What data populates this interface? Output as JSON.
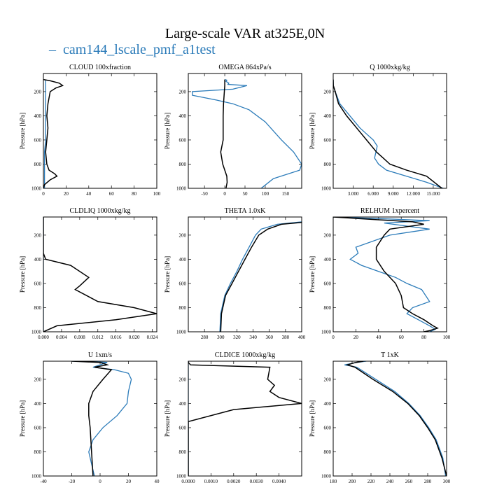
{
  "figure": {
    "title": "Large-scale VAR at325E,0N",
    "legend": {
      "marker": "–",
      "label": "cam144_lscale_pmf_a1test",
      "color": "#2b7bb9"
    },
    "colors": {
      "blue": "#2b7bb9",
      "black": "#000000"
    },
    "ylabel": "Pressure [hPa]"
  },
  "chart_data": [
    {
      "type": "line",
      "title": "CLOUD 100xfraction",
      "xlim": [
        0,
        100
      ],
      "ylim": [
        1000,
        50
      ],
      "xticks": [
        "0",
        "20",
        "40",
        "60",
        "80",
        "100"
      ],
      "xtick_values": [
        0,
        20,
        40,
        60,
        80,
        100
      ],
      "yticks": [
        "200",
        "400",
        "600",
        "800",
        "1000"
      ],
      "ytick_values": [
        200,
        400,
        600,
        800,
        1000
      ],
      "series": [
        {
          "name": "cam144_lscale_pmf_a1test",
          "color": "#2b7bb9",
          "x": [
            2,
            2,
            2,
            2,
            2,
            2,
            1,
            1,
            1,
            1,
            1,
            1
          ],
          "p": [
            100,
            200,
            300,
            400,
            500,
            600,
            700,
            800,
            850,
            900,
            950,
            1000
          ]
        },
        {
          "name": "black",
          "color": "#000000",
          "x": [
            0,
            6,
            14,
            17,
            11,
            6,
            4,
            3,
            4,
            3,
            2,
            3,
            5,
            10,
            12,
            6,
            1,
            0
          ],
          "p": [
            100,
            110,
            130,
            150,
            170,
            200,
            300,
            400,
            500,
            600,
            700,
            800,
            850,
            880,
            900,
            930,
            970,
            1000
          ]
        }
      ]
    },
    {
      "type": "line",
      "title": "OMEGA 864xPa/s",
      "xlim": [
        -90,
        190
      ],
      "ylim": [
        1000,
        50
      ],
      "xticks": [
        "-50",
        "0",
        "50",
        "100",
        "150"
      ],
      "xtick_values": [
        -50,
        0,
        50,
        100,
        150
      ],
      "yticks": [
        "200",
        "400",
        "600",
        "800",
        "1000"
      ],
      "ytick_values": [
        200,
        400,
        600,
        800,
        1000
      ],
      "series": [
        {
          "name": "cam144_lscale_pmf_a1test",
          "color": "#2b7bb9",
          "x": [
            0,
            5,
            3,
            10,
            8,
            55,
            20,
            -80,
            -80,
            -20,
            20,
            60,
            100,
            140,
            170,
            190,
            185,
            120,
            90
          ],
          "p": [
            100,
            105,
            115,
            130,
            140,
            150,
            180,
            200,
            230,
            270,
            300,
            350,
            450,
            600,
            700,
            800,
            850,
            920,
            1000
          ]
        },
        {
          "name": "black",
          "color": "#000000",
          "x": [
            0,
            0,
            -1,
            -3,
            -4,
            -4,
            -4,
            -10,
            -5,
            5,
            6,
            3
          ],
          "p": [
            100,
            150,
            200,
            300,
            400,
            500,
            600,
            700,
            800,
            900,
            950,
            1000
          ]
        }
      ]
    },
    {
      "type": "line",
      "title": "Q 1000xkg/kg",
      "xlim": [
        0,
        17000
      ],
      "ylim": [
        1000,
        50
      ],
      "xticks": [
        "3.000",
        "6.000",
        "9.000",
        "12.000",
        "15.000"
      ],
      "xtick_values": [
        3000,
        6000,
        9000,
        12000,
        15000
      ],
      "yticks": [
        "200",
        "400",
        "600",
        "800",
        "1000"
      ],
      "ytick_values": [
        200,
        400,
        600,
        800,
        1000
      ],
      "series": [
        {
          "name": "cam144_lscale_pmf_a1test",
          "color": "#2b7bb9",
          "x": [
            0,
            20,
            300,
            1000,
            2500,
            4000,
            5000,
            6000,
            6600,
            6200,
            6800,
            8000,
            11000,
            14000,
            16500
          ],
          "p": [
            100,
            150,
            200,
            300,
            400,
            500,
            550,
            600,
            650,
            750,
            800,
            850,
            900,
            950,
            1000
          ]
        },
        {
          "name": "black",
          "color": "#000000",
          "x": [
            0,
            20,
            300,
            800,
            2000,
            3500,
            5000,
            6500,
            7500,
            8500,
            11000,
            14000,
            16300
          ],
          "p": [
            100,
            150,
            200,
            300,
            400,
            500,
            600,
            700,
            750,
            800,
            850,
            900,
            1000
          ]
        }
      ]
    },
    {
      "type": "line",
      "title": "CLDLIQ 1000xkg/kg",
      "xlim": [
        0,
        0.025
      ],
      "ylim": [
        1000,
        50
      ],
      "xticks": [
        "0.000",
        "0.004",
        "0.008",
        "0.012",
        "0.016",
        "0.020",
        "0.024"
      ],
      "xtick_values": [
        0,
        0.004,
        0.008,
        0.012,
        0.016,
        0.02,
        0.024
      ],
      "yticks": [
        "200",
        "400",
        "600",
        "800",
        "1000"
      ],
      "ytick_values": [
        200,
        400,
        600,
        800,
        1000
      ],
      "series": [
        {
          "name": "cam144_lscale_pmf_a1test",
          "color": "#2b7bb9",
          "x": [
            0,
            0,
            0,
            0,
            0,
            0,
            0
          ],
          "p": [
            50,
            200,
            400,
            600,
            800,
            950,
            1000
          ]
        },
        {
          "name": "black",
          "color": "#000000",
          "x": [
            0,
            0,
            0.0005,
            0.006,
            0.01,
            0.008,
            0.007,
            0.012,
            0.02,
            0.025,
            0.016,
            0.003,
            0
          ],
          "p": [
            50,
            350,
            400,
            450,
            550,
            620,
            650,
            750,
            800,
            850,
            900,
            950,
            1000
          ]
        }
      ]
    },
    {
      "type": "line",
      "title": "THETA 1.0xK",
      "xlim": [
        260,
        400
      ],
      "ylim": [
        1000,
        50
      ],
      "xticks": [
        "280",
        "300",
        "320",
        "340",
        "360",
        "380",
        "400"
      ],
      "xtick_values": [
        280,
        300,
        320,
        340,
        360,
        380,
        400
      ],
      "yticks": [
        "200",
        "400",
        "600",
        "800",
        "1000"
      ],
      "ytick_values": [
        200,
        400,
        600,
        800,
        1000
      ],
      "series": [
        {
          "name": "cam144_lscale_pmf_a1test",
          "color": "#2b7bb9",
          "x": [
            400,
            370,
            350,
            343,
            335,
            327,
            320,
            312,
            305,
            300,
            299
          ],
          "p": [
            90,
            110,
            150,
            200,
            300,
            400,
            500,
            600,
            700,
            850,
            1000
          ]
        },
        {
          "name": "black",
          "color": "#000000",
          "x": [
            400,
            375,
            358,
            347,
            338,
            330,
            322,
            314,
            306,
            301,
            300
          ],
          "p": [
            95,
            110,
            150,
            200,
            300,
            400,
            500,
            600,
            700,
            850,
            1000
          ]
        }
      ]
    },
    {
      "type": "line",
      "title": "RELHUM 1xpercent",
      "xlim": [
        0,
        100
      ],
      "ylim": [
        1000,
        50
      ],
      "xticks": [
        "0",
        "20",
        "40",
        "60",
        "80",
        "100"
      ],
      "xtick_values": [
        0,
        20,
        40,
        60,
        80,
        100
      ],
      "yticks": [
        "200",
        "400",
        "600",
        "800",
        "1000"
      ],
      "ytick_values": [
        200,
        400,
        600,
        800,
        1000
      ],
      "series": [
        {
          "name": "cam144_lscale_pmf_a1test",
          "color": "#2b7bb9",
          "x": [
            0,
            30,
            60,
            85,
            45,
            85,
            50,
            20,
            22,
            15,
            25,
            40,
            55,
            65,
            78,
            85,
            70,
            65,
            75,
            85,
            90,
            85
          ],
          "p": [
            50,
            60,
            70,
            80,
            100,
            150,
            200,
            300,
            350,
            400,
            450,
            500,
            550,
            600,
            650,
            750,
            800,
            850,
            900,
            950,
            980,
            1000
          ]
        },
        {
          "name": "black",
          "color": "#000000",
          "x": [
            0,
            35,
            70,
            80,
            50,
            45,
            38,
            38,
            45,
            55,
            60,
            62,
            70,
            80,
            88,
            92,
            85,
            80
          ],
          "p": [
            50,
            70,
            90,
            110,
            150,
            200,
            300,
            400,
            500,
            600,
            700,
            800,
            850,
            900,
            950,
            970,
            990,
            1000
          ]
        }
      ]
    },
    {
      "type": "line",
      "title": "U 1xm/s",
      "xlim": [
        -40,
        40
      ],
      "ylim": [
        1000,
        50
      ],
      "xticks": [
        "-40",
        "-20",
        "0",
        "20",
        "40"
      ],
      "xtick_values": [
        -40,
        -20,
        0,
        20,
        40
      ],
      "yticks": [
        "200",
        "400",
        "600",
        "800",
        "1000"
      ],
      "ytick_values": [
        200,
        400,
        600,
        800,
        1000
      ],
      "series": [
        {
          "name": "cam144_lscale_pmf_a1test",
          "color": "#2b7bb9",
          "x": [
            -20,
            5,
            -5,
            10,
            20,
            22,
            20,
            19,
            12,
            2,
            -5,
            -8,
            -6,
            -4
          ],
          "p": [
            50,
            60,
            100,
            120,
            150,
            200,
            300,
            400,
            500,
            600,
            700,
            800,
            900,
            1000
          ]
        },
        {
          "name": "black",
          "color": "#000000",
          "x": [
            -20,
            0,
            5,
            -4,
            8,
            2,
            -5,
            -8,
            -8,
            -7,
            -6,
            -5
          ],
          "p": [
            50,
            60,
            80,
            100,
            120,
            200,
            300,
            400,
            500,
            600,
            800,
            1000
          ]
        }
      ]
    },
    {
      "type": "line",
      "title": "CLDICE 1000xkg/kg",
      "xlim": [
        0,
        0.005
      ],
      "ylim": [
        1000,
        50
      ],
      "xticks": [
        "0.0000",
        "0.0010",
        "0.0020",
        "0.0030",
        "0.0040"
      ],
      "xtick_values": [
        0,
        0.001,
        0.002,
        0.003,
        0.004
      ],
      "yticks": [
        "200",
        "400",
        "600",
        "800",
        "1000"
      ],
      "ytick_values": [
        200,
        400,
        600,
        800,
        1000
      ],
      "series": [
        {
          "name": "cam144_lscale_pmf_a1test",
          "color": "#2b7bb9",
          "x": [
            0,
            0,
            0,
            0,
            0,
            0,
            0,
            0
          ],
          "p": [
            50,
            100,
            200,
            400,
            600,
            800,
            950,
            1000
          ]
        },
        {
          "name": "black",
          "color": "#000000",
          "x": [
            0,
            0,
            0.0001,
            0.0036,
            0.0035,
            0.0038,
            0.0036,
            0.004,
            0.005,
            0.002,
            0,
            0
          ],
          "p": [
            50,
            60,
            80,
            100,
            200,
            250,
            300,
            350,
            400,
            450,
            550,
            1000
          ]
        }
      ]
    },
    {
      "type": "line",
      "title": "T 1xK",
      "xlim": [
        180,
        300
      ],
      "ylim": [
        1000,
        50
      ],
      "xticks": [
        "180",
        "200",
        "220",
        "240",
        "260",
        "280",
        "300"
      ],
      "xtick_values": [
        180,
        200,
        220,
        240,
        260,
        280,
        300
      ],
      "yticks": [
        "200",
        "400",
        "600",
        "800",
        "1000"
      ],
      "ytick_values": [
        200,
        400,
        600,
        800,
        1000
      ],
      "series": [
        {
          "name": "cam144_lscale_pmf_a1test",
          "color": "#2b7bb9",
          "x": [
            215,
            205,
            192,
            205,
            225,
            245,
            260,
            272,
            281,
            289,
            296,
            299
          ],
          "p": [
            50,
            60,
            80,
            100,
            200,
            300,
            400,
            500,
            600,
            700,
            850,
            1000
          ]
        },
        {
          "name": "black",
          "color": "#000000",
          "x": [
            212,
            204,
            195,
            203,
            222,
            243,
            259,
            271,
            280,
            288,
            295,
            300
          ],
          "p": [
            50,
            60,
            80,
            100,
            200,
            300,
            400,
            500,
            600,
            700,
            850,
            1000
          ]
        }
      ]
    }
  ]
}
